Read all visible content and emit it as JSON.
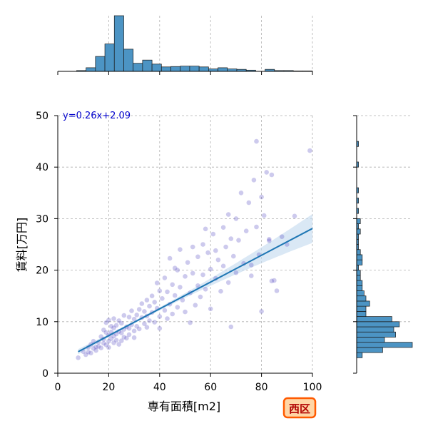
{
  "chart_data": {
    "type": "scatter",
    "xlabel": "専有面積[m2]",
    "ylabel": "賃料[万円]",
    "xlim": [
      0,
      100
    ],
    "ylim": [
      0,
      50
    ],
    "x_ticks": [
      0,
      20,
      40,
      60,
      80,
      100
    ],
    "y_ticks": [
      0,
      10,
      20,
      30,
      40,
      50
    ],
    "grid": true,
    "point_color": "#4b3fbf",
    "regression": {
      "equation_label": "y=0.26x+2.09",
      "slope": 0.26,
      "intercept": 2.09,
      "x_range": [
        8,
        100
      ],
      "line_color": "#1f77b4",
      "band_color": "#c6dcef"
    },
    "points": [
      [
        8,
        3.0
      ],
      [
        10,
        4.2
      ],
      [
        11,
        3.6
      ],
      [
        12,
        5.0
      ],
      [
        12,
        4.1
      ],
      [
        13,
        5.6
      ],
      [
        13,
        3.9
      ],
      [
        14,
        4.8
      ],
      [
        14,
        6.2
      ],
      [
        15,
        5.1
      ],
      [
        15,
        4.4
      ],
      [
        16,
        6.0
      ],
      [
        16,
        5.2
      ],
      [
        17,
        4.9
      ],
      [
        17,
        7.1
      ],
      [
        18,
        5.8
      ],
      [
        18,
        6.6
      ],
      [
        18,
        8.4
      ],
      [
        19,
        5.5
      ],
      [
        19,
        7.9
      ],
      [
        19,
        9.8
      ],
      [
        20,
        6.2
      ],
      [
        20,
        7.4
      ],
      [
        20,
        5.0
      ],
      [
        20,
        10.3
      ],
      [
        21,
        8.0
      ],
      [
        21,
        6.7
      ],
      [
        21,
        9.1
      ],
      [
        22,
        7.2
      ],
      [
        22,
        8.8
      ],
      [
        22,
        5.9
      ],
      [
        22,
        10.6
      ],
      [
        23,
        7.6
      ],
      [
        23,
        9.3
      ],
      [
        23,
        6.4
      ],
      [
        24,
        8.1
      ],
      [
        24,
        10.2
      ],
      [
        24,
        5.6
      ],
      [
        25,
        7.8
      ],
      [
        25,
        9.7
      ],
      [
        25,
        6.3
      ],
      [
        26,
        8.5
      ],
      [
        26,
        11.2
      ],
      [
        26,
        7.0
      ],
      [
        27,
        9.0
      ],
      [
        27,
        6.8
      ],
      [
        28,
        8.7
      ],
      [
        28,
        10.9
      ],
      [
        28,
        7.5
      ],
      [
        29,
        9.4
      ],
      [
        29,
        12.1
      ],
      [
        30,
        8.2
      ],
      [
        30,
        10.5
      ],
      [
        30,
        6.9
      ],
      [
        31,
        11.3
      ],
      [
        31,
        9.1
      ],
      [
        32,
        12.4
      ],
      [
        32,
        8.6
      ],
      [
        33,
        10.8
      ],
      [
        33,
        13.5
      ],
      [
        34,
        9.6
      ],
      [
        34,
        12.0
      ],
      [
        35,
        11.1
      ],
      [
        35,
        8.9
      ],
      [
        35,
        14.2
      ],
      [
        36,
        13.0
      ],
      [
        36,
        10.2
      ],
      [
        37,
        11.8
      ],
      [
        37,
        15.0
      ],
      [
        38,
        9.9
      ],
      [
        38,
        13.8
      ],
      [
        39,
        12.6
      ],
      [
        40,
        11.0
      ],
      [
        40,
        16.0
      ],
      [
        40,
        8.7
      ],
      [
        41,
        14.5
      ],
      [
        42,
        12.2
      ],
      [
        42,
        18.5
      ],
      [
        43,
        10.6
      ],
      [
        43,
        15.8
      ],
      [
        44,
        13.4
      ],
      [
        45,
        17.2
      ],
      [
        45,
        11.5
      ],
      [
        46,
        15.1
      ],
      [
        46,
        20.4
      ],
      [
        47,
        12.8
      ],
      [
        48,
        16.7
      ],
      [
        48,
        24.0
      ],
      [
        49,
        14.2
      ],
      [
        50,
        18.8
      ],
      [
        50,
        11.9
      ],
      [
        51,
        21.5
      ],
      [
        52,
        15.6
      ],
      [
        52,
        9.8
      ],
      [
        53,
        19.4
      ],
      [
        54,
        13.2
      ],
      [
        55,
        22.6
      ],
      [
        55,
        17.0
      ],
      [
        56,
        14.8
      ],
      [
        57,
        25.0
      ],
      [
        57,
        19.1
      ],
      [
        58,
        16.3
      ],
      [
        59,
        23.4
      ],
      [
        60,
        20.2
      ],
      [
        60,
        12.5
      ],
      [
        61,
        27.0
      ],
      [
        62,
        18.4
      ],
      [
        63,
        22.0
      ],
      [
        64,
        15.9
      ],
      [
        65,
        28.3
      ],
      [
        65,
        20.8
      ],
      [
        66,
        24.5
      ],
      [
        67,
        17.6
      ],
      [
        68,
        26.1
      ],
      [
        68,
        9.0
      ],
      [
        69,
        22.7
      ],
      [
        70,
        30.0
      ],
      [
        70,
        19.5
      ],
      [
        71,
        25.8
      ],
      [
        72,
        35.0
      ],
      [
        73,
        21.3
      ],
      [
        74,
        27.6
      ],
      [
        75,
        33.1
      ],
      [
        76,
        18.9
      ],
      [
        77,
        37.5
      ],
      [
        78,
        28.4
      ],
      [
        79,
        23.0
      ],
      [
        80,
        34.2
      ],
      [
        80,
        12.0
      ],
      [
        81,
        30.6
      ],
      [
        82,
        39.0
      ],
      [
        83,
        25.7
      ],
      [
        84,
        38.5
      ],
      [
        85,
        18.0
      ],
      [
        86,
        16.0
      ],
      [
        88,
        26.5
      ],
      [
        90,
        25.0
      ],
      [
        93,
        30.5
      ],
      [
        99,
        43.2
      ],
      [
        78,
        45.0
      ],
      [
        83,
        26.0
      ],
      [
        84,
        17.9
      ],
      [
        76,
        21.0
      ],
      [
        67,
        30.8
      ],
      [
        62,
        23.8
      ],
      [
        58,
        28.0
      ],
      [
        53,
        24.5
      ],
      [
        47,
        20.0
      ],
      [
        44,
        22.3
      ],
      [
        39,
        17.5
      ]
    ],
    "top_histogram": {
      "bin_edges": [
        0,
        3.7,
        7.4,
        11.1,
        14.8,
        18.5,
        22.2,
        25.9,
        29.6,
        33.3,
        37,
        40.7,
        44.4,
        48.1,
        51.8,
        55.5,
        59.2,
        62.9,
        66.6,
        70.3,
        74,
        77.7,
        81.4,
        85.1,
        88.8,
        92.5,
        96.2,
        100
      ],
      "counts": [
        0,
        0,
        2,
        9,
        37,
        68,
        138,
        55,
        20,
        28,
        18,
        11,
        12,
        13,
        13,
        11,
        6,
        9,
        6,
        5,
        3,
        0,
        5,
        2,
        2,
        1,
        1
      ]
    },
    "right_histogram": {
      "bin_edges": [
        0,
        1,
        2,
        3,
        4,
        5,
        6,
        7,
        8,
        9,
        10,
        11,
        12,
        13,
        14,
        15,
        16,
        17,
        18,
        19,
        20,
        21,
        22,
        23,
        24,
        25,
        26,
        27,
        28,
        29,
        30,
        31,
        32,
        33,
        34,
        35,
        36,
        37,
        38,
        39,
        40,
        41,
        42,
        43,
        44,
        45,
        46,
        47,
        48,
        49,
        50
      ],
      "counts": [
        0,
        0,
        0,
        3,
        14,
        30,
        15,
        21,
        20,
        23,
        19,
        5,
        5,
        7,
        5,
        4,
        3,
        3,
        2,
        2,
        1,
        3,
        3,
        2,
        1,
        1,
        1,
        2,
        1,
        2,
        0,
        1,
        0,
        1,
        0,
        1,
        0,
        0,
        0,
        0,
        1,
        0,
        0,
        0,
        1,
        0,
        0,
        0,
        0,
        0
      ],
      "color": "#4c94c4"
    }
  },
  "badge": {
    "label": "西区"
  }
}
